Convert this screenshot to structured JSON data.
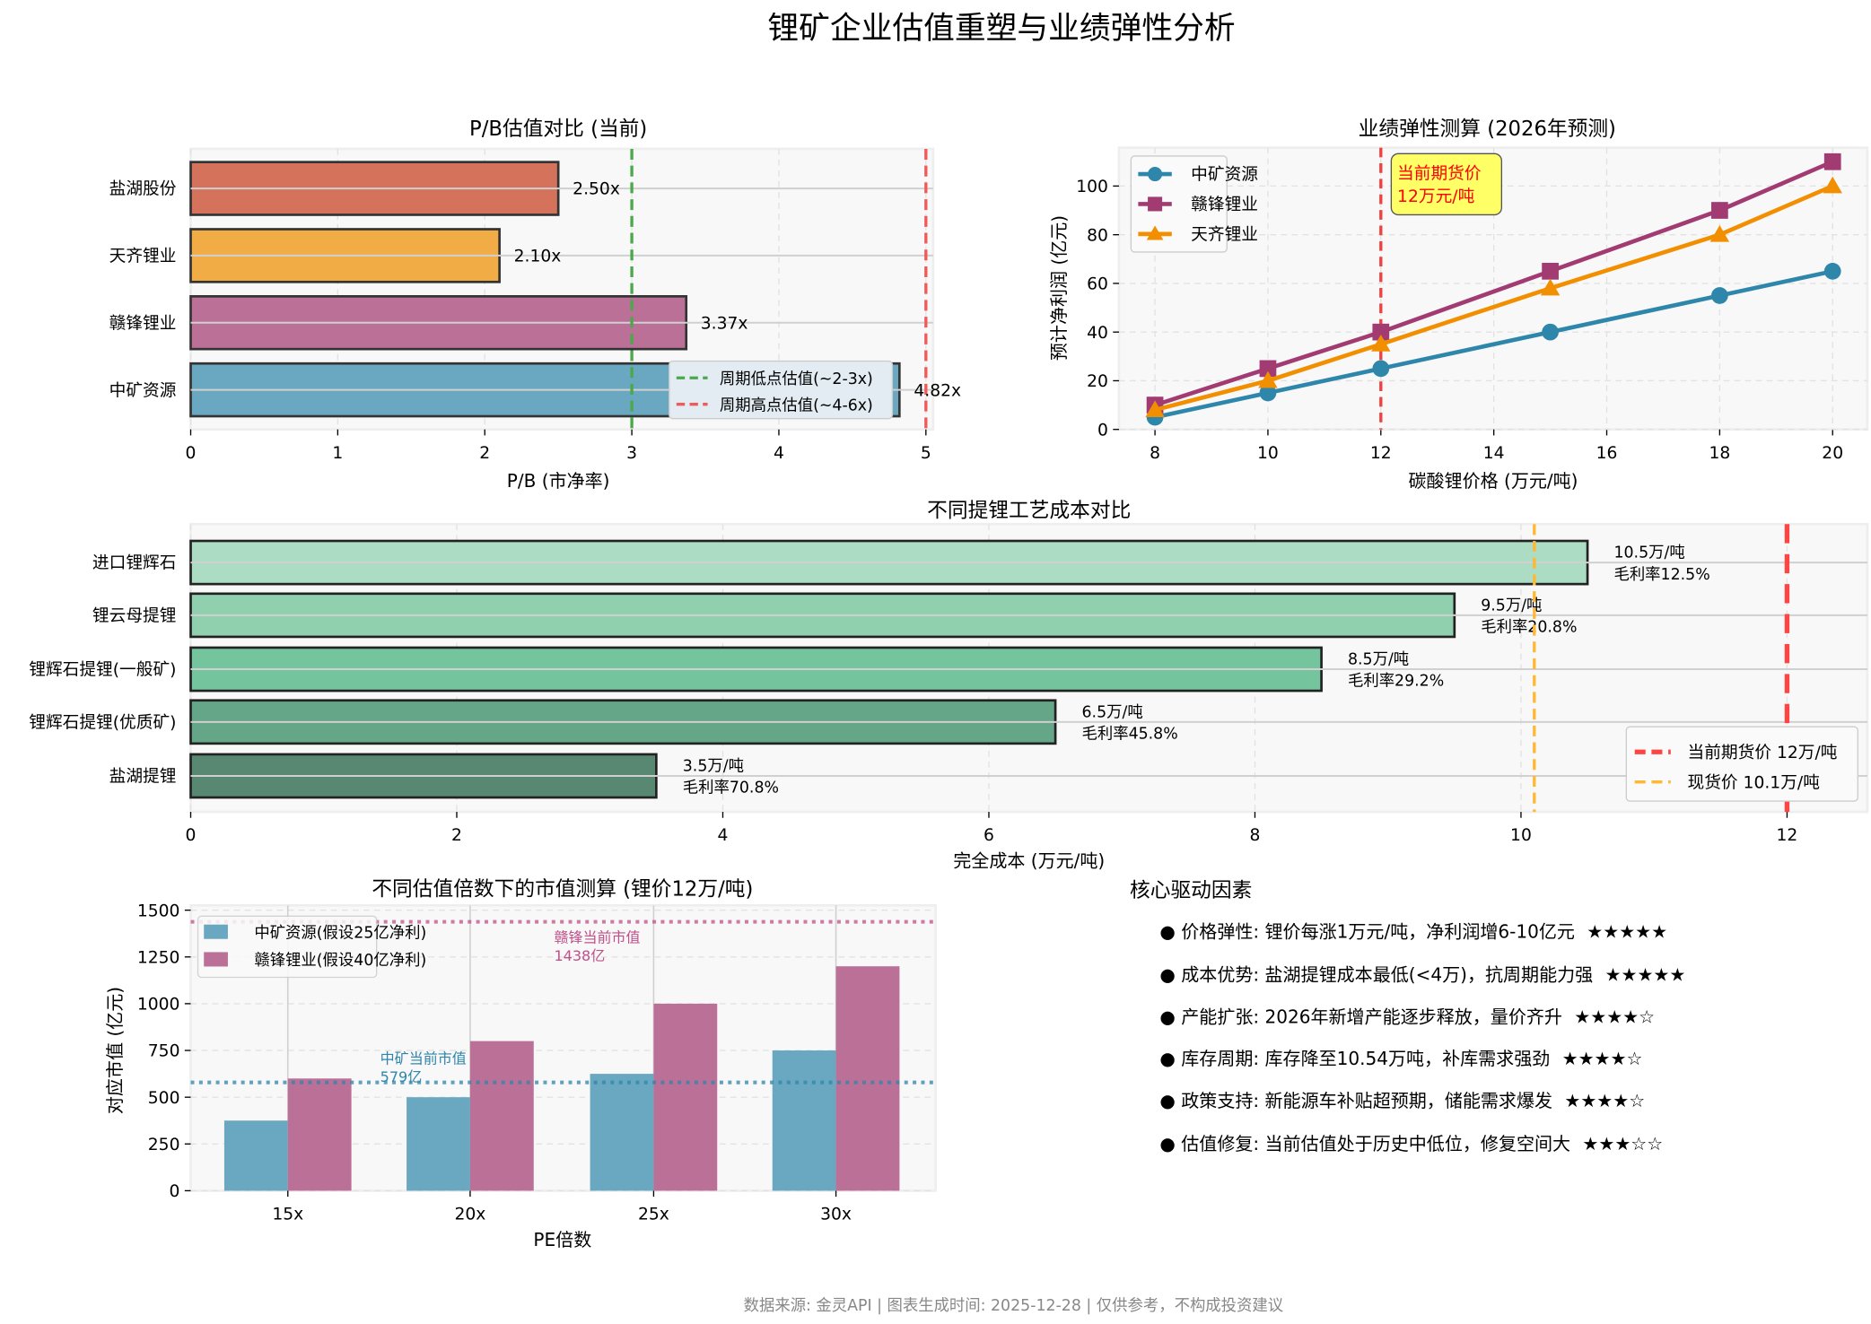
{
  "title": "锂矿企业估值重塑与业绩弹性分析",
  "footer": "数据来源: 金灵API | 图表生成时间: 2025-12-28 | 仅供参考，不构成投资建议",
  "chart_data": [
    {
      "type": "bar",
      "orientation": "horizontal",
      "title": "P/B估值对比 (当前)",
      "xlabel": "P/B (市净率)",
      "ylabel": "",
      "categories": [
        "盐湖股份",
        "天齐锂业",
        "赣锋锂业",
        "中矿资源"
      ],
      "values": [
        2.5,
        2.1,
        3.37,
        4.82
      ],
      "value_labels": [
        "2.50x",
        "2.10x",
        "3.37x",
        "4.82x"
      ],
      "colors": [
        "#d4725c",
        "#f2ac45",
        "#bb7098",
        "#6aa8c2"
      ],
      "xlim": [
        0,
        5.05
      ],
      "xticks": [
        0,
        1,
        2,
        3,
        4,
        5
      ],
      "reference_lines": [
        {
          "name": "周期低点估值(~2-3x)",
          "x": 3,
          "color": "#4ca84c"
        },
        {
          "name": "周期高点估值(~4-6x)",
          "x": 5,
          "color": "#f05a5a"
        }
      ],
      "legend": "lower-right",
      "grid": true
    },
    {
      "type": "line",
      "title": "业绩弹性测算 (2026年预测)",
      "xlabel": "碳酸锂价格 (万元/吨)",
      "ylabel": "预计净利润 (亿元)",
      "x": [
        8,
        10,
        12,
        15,
        18,
        20
      ],
      "series": [
        {
          "name": "中矿资源",
          "values": [
            5,
            15,
            25,
            40,
            55,
            65
          ],
          "color": "#2e86ab",
          "marker": "circle"
        },
        {
          "name": "赣锋锂业",
          "values": [
            10,
            25,
            40,
            65,
            90,
            110
          ],
          "color": "#a23b72",
          "marker": "square"
        },
        {
          "name": "天齐锂业",
          "values": [
            8,
            20,
            35,
            58,
            80,
            100
          ],
          "color": "#f18f01",
          "marker": "triangle"
        }
      ],
      "xlim": [
        7.4,
        20.6
      ],
      "ylim": [
        0,
        115
      ],
      "xticks": [
        8,
        10,
        12,
        14,
        16,
        18,
        20
      ],
      "yticks": [
        0,
        20,
        40,
        60,
        80,
        100
      ],
      "annotation": {
        "text_line1": "当前期货价",
        "text_line2": "12万元/吨",
        "x": 12,
        "color": "#ff0000",
        "box_color": "#ffff66"
      },
      "legend": "upper-left",
      "grid": true
    },
    {
      "type": "bar",
      "orientation": "horizontal",
      "title": "不同提锂工艺成本对比",
      "xlabel": "完全成本 (万元/吨)",
      "ylabel": "",
      "categories": [
        "进口锂辉石",
        "锂云母提锂",
        "锂辉石提锂(一般矿)",
        "锂辉石提锂(优质矿)",
        "盐湖提锂"
      ],
      "values": [
        10.5,
        9.5,
        8.5,
        6.5,
        3.5
      ],
      "value_labels": [
        "10.5万/吨",
        "9.5万/吨",
        "8.5万/吨",
        "6.5万/吨",
        "3.5万/吨"
      ],
      "margin_labels": [
        "毛利率12.5%",
        "毛利率20.8%",
        "毛利率29.2%",
        "毛利率45.8%",
        "毛利率70.8%"
      ],
      "colors": [
        "#acdcc3",
        "#90d0ae",
        "#74c49e",
        "#66a688",
        "#588872"
      ],
      "xlim": [
        0,
        12.6
      ],
      "xticks": [
        0,
        2,
        4,
        6,
        8,
        10,
        12
      ],
      "reference_lines": [
        {
          "name": "当前期货价 12万/吨",
          "x": 12,
          "color": "#ff4444"
        },
        {
          "name": "现货价 10.1万/吨",
          "x": 10.1,
          "color": "#ffb833"
        }
      ],
      "legend": "lower-right",
      "grid": true
    },
    {
      "type": "bar",
      "title": "不同估值倍数下的市值测算 (锂价12万/吨)",
      "xlabel": "PE倍数",
      "ylabel": "对应市值 (亿元)",
      "categories": [
        "15x",
        "20x",
        "25x",
        "30x"
      ],
      "series": [
        {
          "name": "中矿资源(假设25亿净利)",
          "values": [
            375,
            500,
            625,
            750
          ],
          "color": "#6aa8c2"
        },
        {
          "name": "赣锋锂业(假设40亿净利)",
          "values": [
            600,
            800,
            1000,
            1200
          ],
          "color": "#bb7098"
        }
      ],
      "ylim": [
        0,
        1520
      ],
      "yticks": [
        0,
        250,
        500,
        750,
        1000,
        1250,
        1500
      ],
      "reference_lines": [
        {
          "label_line1": "中矿当前市值",
          "label_line2": "579亿",
          "y": 579,
          "color": "#2e86ab"
        },
        {
          "label_line1": "赣锋当前市值",
          "label_line2": "1438亿",
          "y": 1438,
          "color": "#c0508a"
        }
      ],
      "legend": "upper-left",
      "grid": true
    }
  ],
  "drivers": {
    "title": "核心驱动因素",
    "items": [
      {
        "text": "● 价格弹性: 锂价每涨1万元/吨，净利润增6-10亿元",
        "stars": "★★★★★",
        "rating": 5
      },
      {
        "text": "● 成本优势: 盐湖提锂成本最低(<4万)，抗周期能力强",
        "stars": "★★★★★",
        "rating": 5
      },
      {
        "text": "● 产能扩张: 2026年新增产能逐步释放，量价齐升",
        "stars": "★★★★☆",
        "rating": 4
      },
      {
        "text": "● 库存周期: 库存降至10.54万吨，补库需求强劲",
        "stars": "★★★★☆",
        "rating": 4
      },
      {
        "text": "● 政策支持: 新能源车补贴超预期，储能需求爆发",
        "stars": "★★★★☆",
        "rating": 4
      },
      {
        "text": "● 估值修复: 当前估值处于历史中低位，修复空间大",
        "stars": "★★★☆☆",
        "rating": 3
      }
    ]
  }
}
